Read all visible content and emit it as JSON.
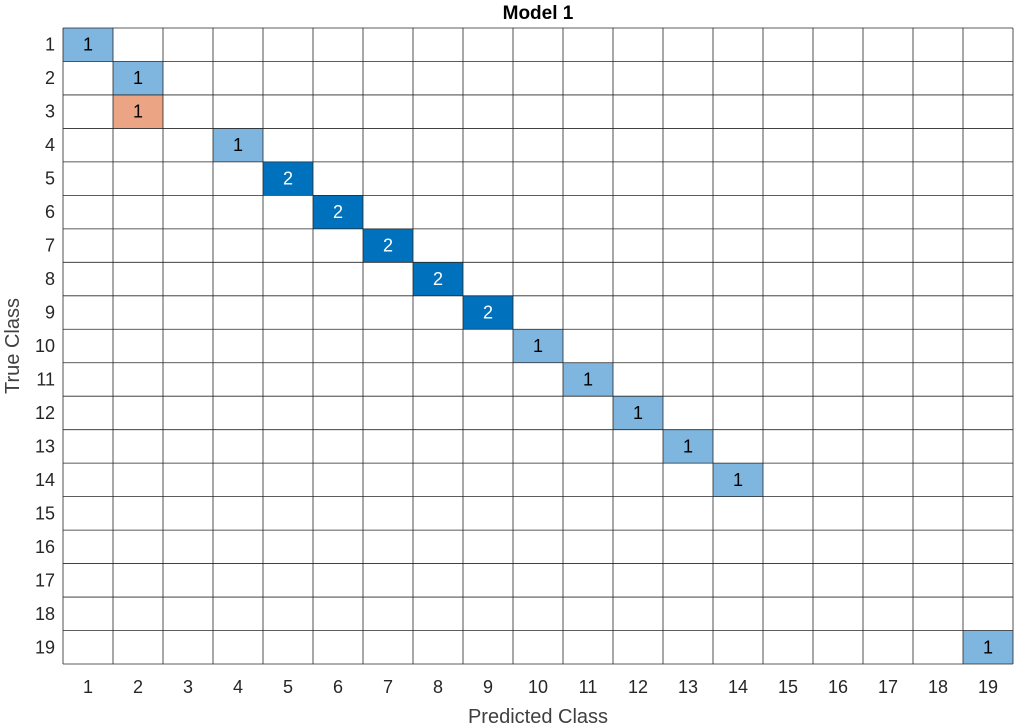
{
  "chart_data": {
    "type": "heatmap",
    "title": "Model 1",
    "xlabel": "Predicted Class",
    "ylabel": "True Class",
    "x_categories": [
      "1",
      "2",
      "3",
      "4",
      "5",
      "6",
      "7",
      "8",
      "9",
      "10",
      "11",
      "12",
      "13",
      "14",
      "15",
      "16",
      "17",
      "18",
      "19"
    ],
    "y_categories": [
      "1",
      "2",
      "3",
      "4",
      "5",
      "6",
      "7",
      "8",
      "9",
      "10",
      "11",
      "12",
      "13",
      "14",
      "15",
      "16",
      "17",
      "18",
      "19"
    ],
    "cells": [
      {
        "true": "1",
        "predicted": "1",
        "value": 1
      },
      {
        "true": "2",
        "predicted": "2",
        "value": 1
      },
      {
        "true": "3",
        "predicted": "2",
        "value": 1
      },
      {
        "true": "4",
        "predicted": "4",
        "value": 1
      },
      {
        "true": "5",
        "predicted": "5",
        "value": 2
      },
      {
        "true": "6",
        "predicted": "6",
        "value": 2
      },
      {
        "true": "7",
        "predicted": "7",
        "value": 2
      },
      {
        "true": "8",
        "predicted": "8",
        "value": 2
      },
      {
        "true": "9",
        "predicted": "9",
        "value": 2
      },
      {
        "true": "10",
        "predicted": "10",
        "value": 1
      },
      {
        "true": "11",
        "predicted": "11",
        "value": 1
      },
      {
        "true": "12",
        "predicted": "12",
        "value": 1
      },
      {
        "true": "13",
        "predicted": "13",
        "value": 1
      },
      {
        "true": "14",
        "predicted": "14",
        "value": 1
      },
      {
        "true": "19",
        "predicted": "19",
        "value": 1
      }
    ],
    "colors": {
      "correct_max": "#0072BD",
      "correct_light": "#7EB6E0",
      "incorrect": "#EBA584",
      "grid": "#262626",
      "background": "#ffffff"
    },
    "grid": true
  }
}
